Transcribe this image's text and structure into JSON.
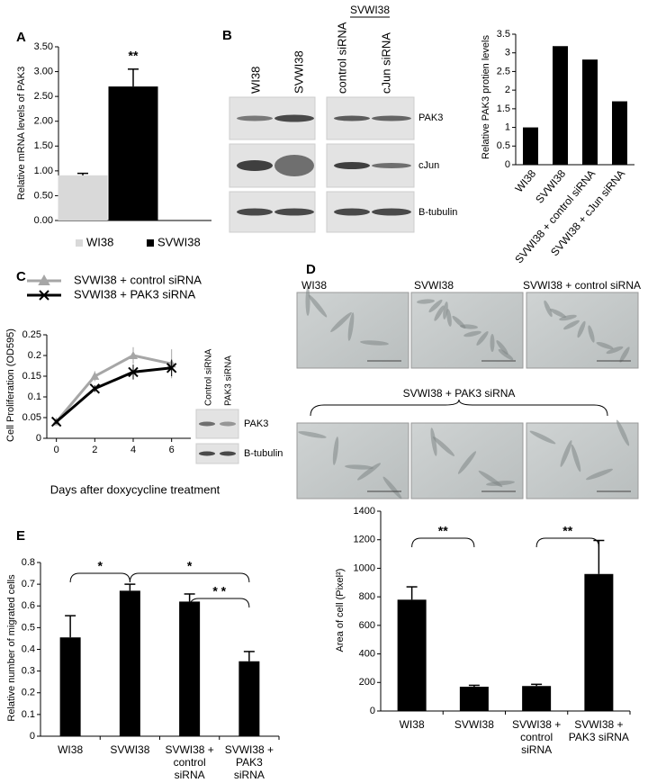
{
  "panel_labels": [
    "A",
    "B",
    "C",
    "D",
    "E"
  ],
  "blot_b": {
    "group": "SVWI38",
    "lanes": [
      "WI38",
      "SVWI38",
      "control siRNA",
      "cJun siRNA"
    ],
    "rows": [
      "PAK3",
      "cJun",
      "B-tubulin"
    ]
  },
  "blot_c": {
    "lanes": [
      "Control siRNA",
      "PAK3 siRNA"
    ],
    "rows": [
      "PAK3",
      "B-tubulin"
    ]
  },
  "micrographs": {
    "labels": [
      "WI38",
      "SVWI38",
      "SVWI38 + control siRNA"
    ],
    "group": "SVWI38 + PAK3 siRNA"
  },
  "chart_data": [
    {
      "type": "bar",
      "y_label": "Relative mRNA levels of PAK3",
      "categories": [
        "WI38",
        "SVWI38"
      ],
      "values": [
        0.91,
        2.7
      ],
      "errors": [
        0.04,
        0.35
      ],
      "colors": [
        "#d9d9d9",
        "#000000"
      ],
      "legend": true,
      "annotations": [
        "**"
      ],
      "ylim": [
        0,
        3.5
      ],
      "yticks": [
        {
          "value": 0,
          "label": "0.00"
        },
        {
          "value": 0.5,
          "label": "0.50"
        },
        {
          "value": 1,
          "label": "1.00"
        },
        {
          "value": 1.5,
          "label": "1.50"
        },
        {
          "value": 2,
          "label": "2.00"
        },
        {
          "value": 2.5,
          "label": "2.50"
        },
        {
          "value": 3,
          "label": "3.00"
        },
        {
          "value": 3.5,
          "label": "3.50"
        }
      ]
    },
    {
      "type": "bar",
      "y_label": "Relative PAK3 protien levels",
      "categories": [
        "WI38",
        "SVWI38",
        "SVWI38 + control siRNA",
        "SVWI38 + cJun siRNA"
      ],
      "values": [
        1,
        3.18,
        2.82,
        1.7
      ],
      "color": "#000000",
      "ylim": [
        0,
        3.5
      ],
      "yticks": [
        0,
        0.5,
        1,
        1.5,
        2,
        2.5,
        3,
        3.5
      ]
    },
    {
      "type": "line",
      "y_label": "Cell Proliferation (OD595)",
      "x_label": "Days after doxycycline treatment",
      "x": [
        0,
        2,
        4,
        6
      ],
      "xlim": [
        -0.5,
        7
      ],
      "xticks": [
        0,
        2,
        4,
        6
      ],
      "series": [
        {
          "name": "SVWI38 + control siRNA",
          "color": "#a6a6a6",
          "marker": "triangle",
          "values": [
            0.04,
            0.15,
            0.2,
            0.18
          ],
          "errors": [
            0.005,
            0.012,
            0.02,
            0.035
          ]
        },
        {
          "name": "SVWI38 + PAK3 siRNA",
          "color": "#000000",
          "marker": "x",
          "values": [
            0.04,
            0.12,
            0.16,
            0.17
          ],
          "errors": [
            0.005,
            0.008,
            0.018,
            0.02
          ]
        }
      ],
      "ylim": [
        0,
        0.25
      ],
      "yticks": [
        0,
        0.05,
        0.1,
        0.15,
        0.2,
        0.25
      ]
    },
    {
      "type": "bar",
      "y_label": "Area of cell (Pixel²)",
      "categories": [
        "WI38",
        "SVWI38",
        "SVWI38 + control siRNA",
        "SVWI38 + PAK3 siRNA"
      ],
      "values": [
        780,
        170,
        175,
        960
      ],
      "errors": [
        90,
        10,
        12,
        235
      ],
      "color": "#000000",
      "annotations": [
        "**",
        "**"
      ],
      "ylim": [
        0,
        1400
      ],
      "yticks": [
        0,
        200,
        400,
        600,
        800,
        1000,
        1200,
        1400
      ]
    },
    {
      "type": "bar",
      "y_label": "Relative number of migrated cells",
      "categories": [
        "WI38",
        "SVWI38",
        "SVWI38 + control siRNA",
        "SVWI38 + PAK3 siRNA"
      ],
      "values": [
        0.455,
        0.67,
        0.62,
        0.345
      ],
      "errors": [
        0.1,
        0.03,
        0.035,
        0.045
      ],
      "color": "#000000",
      "annotations": [
        "*",
        "*",
        "* *"
      ],
      "ylim": [
        0,
        0.8
      ],
      "yticks": [
        0,
        0.1,
        0.2,
        0.3,
        0.4,
        0.5,
        0.6,
        0.7,
        0.8
      ]
    }
  ]
}
